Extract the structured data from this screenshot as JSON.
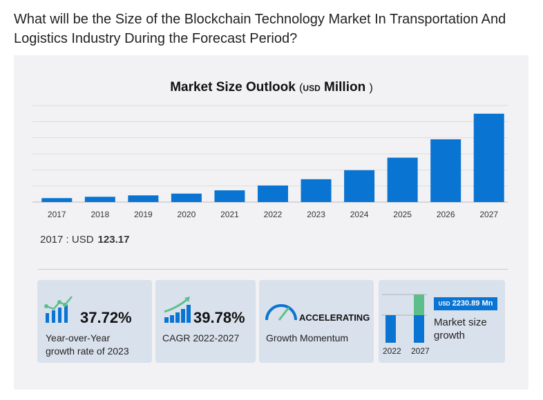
{
  "heading": "What will be the Size of the Blockchain Technology Market In Transportation And Logistics Industry During the Forecast Period?",
  "chart_title": {
    "main": "Market Size Outlook",
    "open": "(",
    "unit": "USD",
    "unit2": "Million",
    "close": ")"
  },
  "chart_data": {
    "type": "bar",
    "title": "Market Size Outlook (USD Million)",
    "categories": [
      "2017",
      "2018",
      "2019",
      "2020",
      "2021",
      "2022",
      "2023",
      "2024",
      "2025",
      "2026",
      "2027"
    ],
    "values": [
      123.17,
      165,
      208,
      263,
      365,
      515,
      710,
      990,
      1380,
      1950,
      2746
    ],
    "ylim": [
      0,
      3000
    ],
    "grid": true,
    "color": "#0a74d2"
  },
  "note": {
    "label": "2017 : USD",
    "value": "123.17"
  },
  "cards": [
    {
      "value": "37.72%",
      "label1": "Year-over-Year",
      "label2": "growth rate of 2023"
    },
    {
      "value": "39.78%",
      "label1": "CAGR 2022-2027"
    },
    {
      "value": "ACCELERATING",
      "label1": "Growth Momentum"
    },
    {
      "badge_unit": "USD",
      "badge_value": "2230.89 Mn",
      "label1": "Market size",
      "label2": "growth",
      "year1": "2022",
      "year2": "2027"
    }
  ],
  "colors": {
    "blue": "#0a74d2",
    "green": "#5cbf8a",
    "card": "#d9e1ec"
  }
}
